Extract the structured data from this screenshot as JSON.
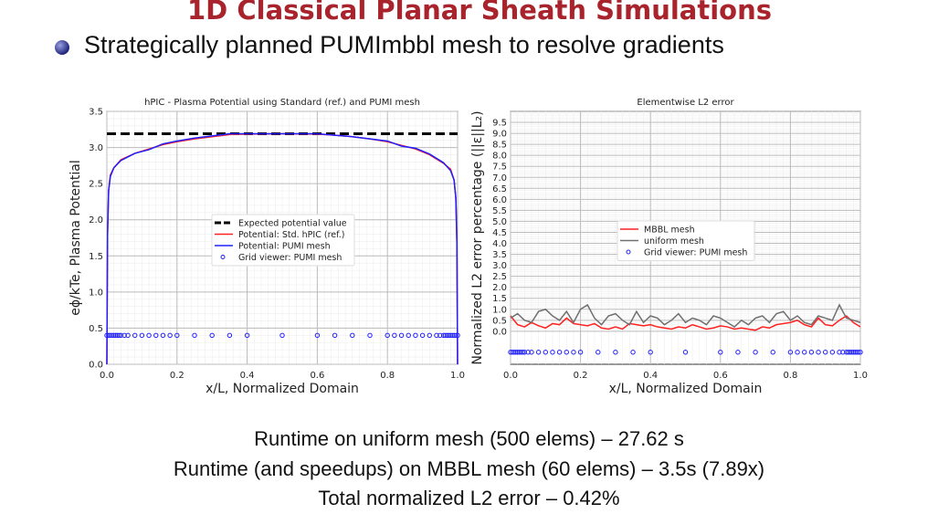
{
  "slide": {
    "title": "1D Classical Planar Sheath Simulations",
    "bullet": "Strategically planned PUMImbbl mesh to resolve gradients",
    "footer": [
      "Runtime on uniform mesh (500 elems) – 27.62 s",
      "Runtime (and speedups) on MBBL mesh (60 elems) – 3.5s (7.89x)",
      "Total normalized L2 error – 0.42%"
    ]
  },
  "chart_data": [
    {
      "type": "line",
      "title": "hPIC - Plasma Potential using Standard (ref.) and PUMI mesh",
      "xlabel": "x/L, Normalized Domain",
      "ylabel": "eϕ/kTe, Plasma Potential",
      "xlim": [
        0,
        1
      ],
      "ylim": [
        0,
        3.5
      ],
      "xticks": [
        "0.0",
        "0.2",
        "0.4",
        "0.6",
        "0.8",
        "1.0"
      ],
      "yticks": [
        "0.0",
        "0.5",
        "1.0",
        "1.5",
        "2.0",
        "2.5",
        "3.0",
        "3.5"
      ],
      "grid": true,
      "legend_position": "center",
      "expected": {
        "name": "Expected potential value",
        "value": 3.19,
        "color": "#000000"
      },
      "series": [
        {
          "name": "Potential: Std. hPIC (ref.)",
          "color": "#ff2020",
          "x": [
            0,
            0.002,
            0.005,
            0.01,
            0.02,
            0.04,
            0.08,
            0.12,
            0.16,
            0.2,
            0.25,
            0.3,
            0.35,
            0.4,
            0.5,
            0.6,
            0.65,
            0.7,
            0.75,
            0.8,
            0.84,
            0.88,
            0.92,
            0.96,
            0.98,
            0.99,
            0.995,
            0.998,
            1
          ],
          "y": [
            0,
            1.8,
            2.4,
            2.62,
            2.72,
            2.83,
            2.92,
            2.98,
            3.04,
            3.08,
            3.12,
            3.15,
            3.18,
            3.185,
            3.19,
            3.185,
            3.17,
            3.15,
            3.12,
            3.08,
            3.03,
            2.98,
            2.9,
            2.78,
            2.7,
            2.55,
            2.3,
            1.7,
            0
          ]
        },
        {
          "name": "Potential: PUMI mesh",
          "color": "#2020ff",
          "x": [
            0,
            0.002,
            0.005,
            0.01,
            0.02,
            0.04,
            0.08,
            0.12,
            0.16,
            0.2,
            0.25,
            0.3,
            0.35,
            0.4,
            0.5,
            0.6,
            0.65,
            0.7,
            0.75,
            0.8,
            0.84,
            0.88,
            0.92,
            0.96,
            0.98,
            0.99,
            0.995,
            0.998,
            1
          ],
          "y": [
            0,
            1.8,
            2.4,
            2.6,
            2.72,
            2.82,
            2.92,
            2.97,
            3.05,
            3.09,
            3.13,
            3.16,
            3.19,
            3.19,
            3.19,
            3.19,
            3.17,
            3.15,
            3.12,
            3.09,
            3.02,
            2.99,
            2.91,
            2.79,
            2.68,
            2.55,
            2.3,
            1.7,
            0
          ]
        }
      ],
      "grid_points": {
        "name": "Grid viewer: PUMI mesh",
        "color": "#2020ff",
        "y": 0.4,
        "x": [
          0,
          0.005,
          0.01,
          0.015,
          0.02,
          0.025,
          0.03,
          0.035,
          0.04,
          0.05,
          0.06,
          0.08,
          0.1,
          0.12,
          0.14,
          0.16,
          0.18,
          0.2,
          0.25,
          0.3,
          0.35,
          0.4,
          0.5,
          0.6,
          0.65,
          0.7,
          0.75,
          0.8,
          0.82,
          0.84,
          0.86,
          0.88,
          0.9,
          0.92,
          0.94,
          0.95,
          0.96,
          0.965,
          0.97,
          0.975,
          0.98,
          0.985,
          0.99,
          0.995,
          1
        ]
      }
    },
    {
      "type": "line",
      "title": "Elementwise L2 error",
      "xlabel": "x/L, Normalized Domain",
      "ylabel": "Normalized L2 error percentage (||ε||L₂)",
      "xlim": [
        0,
        1
      ],
      "ylim": [
        -1.5,
        10
      ],
      "xticks": [
        "0.0",
        "0.2",
        "0.4",
        "0.6",
        "0.8",
        "1.0"
      ],
      "yticks": [
        "0.0",
        "0.5",
        "1.0",
        "1.5",
        "2.0",
        "2.5",
        "3.0",
        "3.5",
        "4.0",
        "4.5",
        "5.0",
        "5.5",
        "6.0",
        "6.5",
        "7.0",
        "7.5",
        "8.0",
        "8.5",
        "9.0",
        "9.5"
      ],
      "grid": true,
      "legend_position": "center",
      "series": [
        {
          "name": "MBBL mesh",
          "color": "#ff2020",
          "x_step": 0.02,
          "y": [
            0.7,
            0.3,
            0.2,
            0.4,
            0.25,
            0.15,
            0.35,
            0.3,
            0.6,
            0.35,
            0.3,
            0.25,
            0.35,
            0.15,
            0.1,
            0.2,
            0.1,
            0.35,
            0.3,
            0.25,
            0.3,
            0.2,
            0.15,
            0.1,
            0.2,
            0.15,
            0.3,
            0.2,
            0.1,
            0.15,
            0.25,
            0.2,
            0.1,
            0.15,
            0.1,
            0.05,
            0.2,
            0.15,
            0.3,
            0.35,
            0.4,
            0.5,
            0.3,
            0.2,
            0.6,
            0.3,
            0.25,
            0.5,
            0.7,
            0.4,
            0.2
          ]
        },
        {
          "name": "uniform mesh",
          "color": "#707070",
          "x_step": 0.02,
          "y": [
            0.6,
            0.8,
            0.5,
            0.4,
            0.9,
            1.0,
            0.7,
            0.5,
            0.9,
            0.4,
            1.0,
            1.2,
            0.6,
            0.3,
            0.7,
            0.8,
            0.5,
            0.3,
            0.9,
            0.4,
            0.7,
            0.6,
            0.3,
            0.5,
            0.8,
            0.4,
            0.6,
            0.5,
            0.3,
            0.7,
            0.6,
            0.4,
            0.2,
            0.5,
            0.3,
            0.6,
            0.7,
            0.4,
            0.8,
            0.9,
            0.5,
            0.7,
            0.4,
            0.3,
            0.7,
            0.6,
            0.5,
            1.2,
            0.6,
            0.5,
            0.4
          ]
        }
      ],
      "grid_points": {
        "name": "Grid viewer: PUMI mesh",
        "color": "#2020ff",
        "y": -0.95
      }
    }
  ]
}
